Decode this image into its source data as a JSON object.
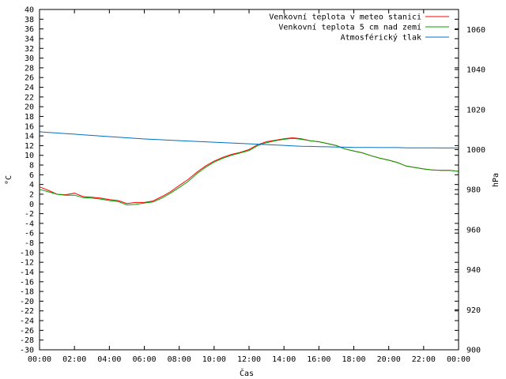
{
  "chart_data": {
    "type": "line",
    "title": "",
    "xlabel": "Čas",
    "ylabel": "°C",
    "y2label": "hPa",
    "x_ticks": [
      "00:00",
      "02:00",
      "04:00",
      "06:00",
      "08:00",
      "10:00",
      "12:00",
      "14:00",
      "16:00",
      "18:00",
      "20:00",
      "22:00",
      "00:00"
    ],
    "xlim_hours": [
      0,
      24
    ],
    "ylim": [
      -30,
      40
    ],
    "y_tick_step": 2,
    "y2lim": [
      900,
      1070
    ],
    "y2_ticks": [
      900,
      920,
      940,
      960,
      980,
      1000,
      1020,
      1040,
      1060
    ],
    "legend_position": "top-right",
    "x": [
      0,
      0.5,
      1,
      1.5,
      2,
      2.5,
      3,
      3.5,
      4,
      4.5,
      5,
      5.5,
      6,
      6.5,
      7,
      7.5,
      8,
      8.5,
      9,
      9.5,
      10,
      10.5,
      11,
      11.5,
      12,
      12.5,
      13,
      13.5,
      14,
      14.5,
      15,
      15.5,
      16,
      16.5,
      17,
      17.5,
      18,
      18.5,
      19,
      19.5,
      20,
      20.5,
      21,
      21.5,
      22,
      22.5,
      23,
      23.5,
      24
    ],
    "series": [
      {
        "name": "Venkovní teplota v meteo stanici",
        "color": "#ff0000",
        "axis": "left",
        "values": [
          3.5,
          2.8,
          2.0,
          1.9,
          2.2,
          1.5,
          1.4,
          1.2,
          0.9,
          0.7,
          0.1,
          0.3,
          0.3,
          0.6,
          1.5,
          2.5,
          3.8,
          5.0,
          6.5,
          7.8,
          8.8,
          9.6,
          10.2,
          10.6,
          11.2,
          12.2,
          12.8,
          13.1,
          13.4,
          13.6,
          13.4,
          13.0,
          12.8,
          12.4,
          12.0,
          11.3,
          10.9,
          10.5,
          9.9,
          9.4,
          9.0,
          8.5,
          7.8,
          7.5,
          7.2,
          7.0,
          6.9,
          6.9,
          6.7
        ]
      },
      {
        "name": "Venkovní teplota 5 cm nad zemí",
        "color": "#00a000",
        "axis": "left",
        "values": [
          3.0,
          2.5,
          2.0,
          1.8,
          1.8,
          1.3,
          1.2,
          1.0,
          0.7,
          0.5,
          -0.2,
          -0.1,
          0.2,
          0.4,
          1.2,
          2.2,
          3.4,
          4.6,
          6.2,
          7.5,
          8.6,
          9.4,
          10.0,
          10.5,
          11.0,
          12.0,
          12.6,
          13.0,
          13.3,
          13.5,
          13.3,
          13.0,
          12.8,
          12.4,
          12.0,
          11.3,
          10.9,
          10.5,
          9.9,
          9.4,
          9.0,
          8.5,
          7.8,
          7.5,
          7.2,
          7.0,
          6.9,
          6.9,
          6.7
        ]
      },
      {
        "name": "Atmosférický tlak",
        "color": "#0070c0",
        "axis": "right",
        "values": [
          1008.9,
          1008.6,
          1008.3,
          1008.0,
          1007.7,
          1007.4,
          1007.1,
          1006.8,
          1006.5,
          1006.2,
          1005.9,
          1005.6,
          1005.3,
          1005.1,
          1004.9,
          1004.7,
          1004.5,
          1004.3,
          1004.1,
          1003.9,
          1003.7,
          1003.5,
          1003.3,
          1003.1,
          1002.9,
          1002.7,
          1002.5,
          1002.3,
          1002.1,
          1001.9,
          1001.7,
          1001.6,
          1001.5,
          1001.4,
          1001.3,
          1001.2,
          1001.1,
          1001.1,
          1001.1,
          1001.0,
          1001.0,
          1001.0,
          1000.9,
          1000.9,
          1000.9,
          1000.9,
          1000.8,
          1000.8,
          1000.8
        ]
      }
    ]
  }
}
